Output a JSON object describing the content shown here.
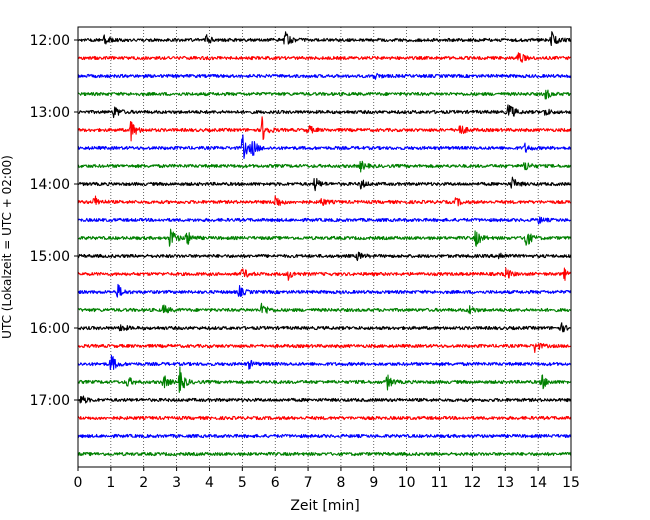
{
  "chart_data": {
    "type": "line",
    "title": "",
    "xlabel": "Zeit  [min]",
    "ylabel": "UTC (Lokalzeit = UTC + 02:00)",
    "xlim": [
      0,
      15
    ],
    "x_ticks": [
      "0",
      "1",
      "2",
      "3",
      "4",
      "5",
      "6",
      "7",
      "8",
      "9",
      "10",
      "11",
      "12",
      "13",
      "14",
      "15"
    ],
    "y_ticks": [
      "12:00",
      "13:00",
      "14:00",
      "15:00",
      "16:00",
      "17:00"
    ],
    "grid": "vertical dotted",
    "series_colors": [
      "#000000",
      "#ff0000",
      "#0000ff",
      "#008000"
    ],
    "traces": [
      {
        "start": "12:00",
        "color": "#000000",
        "events": [
          [
            0.8,
            0.35
          ],
          [
            3.9,
            0.35
          ],
          [
            6.3,
            0.55
          ],
          [
            14.4,
            0.6
          ]
        ]
      },
      {
        "start": "12:15",
        "color": "#ff0000",
        "events": [
          [
            13.4,
            0.55
          ]
        ]
      },
      {
        "start": "12:30",
        "color": "#0000ff",
        "events": [
          [
            9.0,
            0.25
          ]
        ]
      },
      {
        "start": "12:45",
        "color": "#008000",
        "events": [
          [
            14.2,
            0.45
          ]
        ]
      },
      {
        "start": "13:00",
        "color": "#000000",
        "events": [
          [
            1.1,
            0.5
          ],
          [
            13.1,
            0.8
          ],
          [
            14.2,
            0.3
          ]
        ]
      },
      {
        "start": "13:15",
        "color": "#ff0000",
        "events": [
          [
            1.6,
            0.8
          ],
          [
            5.6,
            0.9
          ],
          [
            7.0,
            0.35
          ],
          [
            11.6,
            0.55
          ]
        ]
      },
      {
        "start": "13:30",
        "color": "#0000ff",
        "events": [
          [
            5.0,
            1.0
          ],
          [
            5.3,
            0.6
          ],
          [
            13.6,
            0.3
          ]
        ]
      },
      {
        "start": "13:45",
        "color": "#008000",
        "events": [
          [
            8.6,
            0.35
          ],
          [
            13.6,
            0.4
          ]
        ]
      },
      {
        "start": "14:00",
        "color": "#000000",
        "events": [
          [
            7.2,
            0.5
          ],
          [
            8.6,
            0.35
          ],
          [
            13.2,
            0.5
          ]
        ]
      },
      {
        "start": "14:15",
        "color": "#ff0000",
        "events": [
          [
            0.5,
            0.45
          ],
          [
            6.0,
            0.55
          ],
          [
            7.4,
            0.3
          ],
          [
            11.5,
            0.3
          ]
        ]
      },
      {
        "start": "14:30",
        "color": "#0000ff",
        "events": [
          [
            14.0,
            0.25
          ]
        ]
      },
      {
        "start": "14:45",
        "color": "#008000",
        "events": [
          [
            2.8,
            0.9
          ],
          [
            3.3,
            0.55
          ],
          [
            12.1,
            0.65
          ],
          [
            13.6,
            0.9
          ]
        ]
      },
      {
        "start": "15:00",
        "color": "#000000",
        "events": [
          [
            8.5,
            0.3
          ],
          [
            12.8,
            0.3
          ]
        ]
      },
      {
        "start": "15:15",
        "color": "#ff0000",
        "events": [
          [
            5.0,
            0.45
          ],
          [
            6.4,
            0.35
          ],
          [
            13.0,
            0.5
          ],
          [
            14.8,
            0.4
          ]
        ]
      },
      {
        "start": "15:30",
        "color": "#0000ff",
        "events": [
          [
            1.2,
            0.55
          ],
          [
            4.9,
            0.4
          ]
        ]
      },
      {
        "start": "15:45",
        "color": "#008000",
        "events": [
          [
            2.6,
            0.35
          ],
          [
            5.6,
            0.6
          ],
          [
            11.9,
            0.3
          ]
        ]
      },
      {
        "start": "16:00",
        "color": "#000000",
        "events": [
          [
            1.3,
            0.3
          ],
          [
            14.7,
            0.3
          ]
        ]
      },
      {
        "start": "16:15",
        "color": "#ff0000",
        "events": [
          [
            13.9,
            0.45
          ]
        ]
      },
      {
        "start": "16:30",
        "color": "#0000ff",
        "events": [
          [
            1.0,
            0.75
          ],
          [
            5.2,
            0.3
          ]
        ]
      },
      {
        "start": "16:45",
        "color": "#008000",
        "events": [
          [
            1.5,
            0.4
          ],
          [
            2.6,
            0.5
          ],
          [
            3.1,
            0.95
          ],
          [
            9.4,
            0.55
          ],
          [
            14.1,
            0.6
          ]
        ]
      },
      {
        "start": "17:00",
        "color": "#000000",
        "events": [
          [
            0.1,
            0.35
          ]
        ]
      },
      {
        "start": "17:15",
        "color": "#ff0000",
        "events": []
      },
      {
        "start": "17:30",
        "color": "#0000ff",
        "events": []
      },
      {
        "start": "17:45",
        "color": "#008000",
        "events": []
      }
    ]
  }
}
